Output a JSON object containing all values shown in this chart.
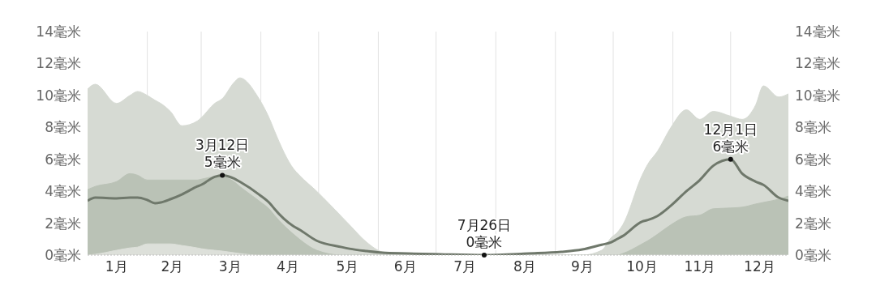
{
  "chart_data": {
    "type": "area",
    "x": [
      "--01-01",
      "--01-05",
      "--01-16",
      "--01-23",
      "--01-27",
      "--02-01",
      "--02-05",
      "--02-08",
      "--02-13",
      "--02-19",
      "--02-27",
      "--03-01",
      "--03-08",
      "--03-12",
      "--03-18",
      "--03-21",
      "--03-31",
      "--04-06",
      "--04-08",
      "--04-18",
      "--04-21",
      "--04-30",
      "--05-13",
      "--05-17",
      "--05-26",
      "--06-03",
      "--06-16",
      "--07-03",
      "--07-26",
      "--08-18",
      "--09-04",
      "--09-15",
      "--09-25",
      "--09-30",
      "--10-03",
      "--10-06",
      "--10-16",
      "--10-19",
      "--10-24",
      "--10-31",
      "--11-08",
      "--11-15",
      "--11-22",
      "--12-01",
      "--12-07",
      "--12-14",
      "--12-18",
      "--12-26",
      "--12-31"
    ],
    "series": [
      {
        "color": "#d6dad3",
        "values": [
          10.4,
          10.7,
          9.5,
          10.0,
          10.25,
          10.0,
          9.7,
          9.5,
          9.0,
          8.1,
          8.4,
          8.6,
          9.5,
          9.8,
          10.8,
          11.1,
          9.8,
          8.4,
          7.8,
          5.4,
          5.0,
          4.0,
          2.4,
          1.9,
          0.8,
          0.2,
          0,
          0,
          0,
          0,
          0,
          0,
          0.3,
          1.1,
          1.4,
          1.9,
          5.0,
          5.7,
          6.5,
          8.0,
          9.1,
          8.5,
          9.0,
          8.7,
          8.5,
          9.4,
          10.6,
          9.9,
          10.1
        ]
      },
      {
        "color": "#bac2b6",
        "values": [
          4.1,
          4.3,
          4.6,
          5.1,
          5.0,
          4.7,
          4.7,
          4.7,
          4.7,
          4.7,
          4.7,
          4.75,
          4.9,
          4.9,
          4.6,
          4.3,
          3.4,
          2.8,
          2.5,
          1.3,
          1.0,
          0.3,
          0,
          0,
          0,
          0,
          0,
          0,
          0,
          0,
          0,
          0,
          0,
          0,
          0,
          0.1,
          0.7,
          0.9,
          1.3,
          1.9,
          2.4,
          2.5,
          2.9,
          2.95,
          3.0,
          3.2,
          3.3,
          3.5,
          3.7
        ]
      },
      {
        "color": "#dde0da",
        "values": [
          0,
          0.05,
          0.3,
          0.45,
          0.5,
          0.7,
          0.7,
          0.7,
          0.7,
          0.6,
          0.45,
          0.4,
          0.3,
          0.25,
          0.15,
          0.1,
          0,
          0,
          0,
          0,
          0,
          0,
          0,
          0,
          0,
          0,
          0,
          0,
          0,
          0,
          0,
          0,
          0,
          0,
          0,
          0,
          0,
          0,
          0,
          0,
          0,
          0,
          0,
          0,
          0,
          0,
          0,
          0,
          0
        ]
      },
      {
        "type": "line",
        "color": "#6f786b",
        "values": [
          3.4,
          3.6,
          3.55,
          3.6,
          3.6,
          3.45,
          3.25,
          3.3,
          3.5,
          3.8,
          4.3,
          4.4,
          4.9,
          5,
          4.8,
          4.6,
          3.8,
          3.2,
          2.9,
          1.8,
          1.6,
          0.9,
          0.5,
          0.4,
          0.25,
          0.15,
          0.1,
          0.05,
          0,
          0.1,
          0.2,
          0.35,
          0.65,
          0.8,
          1.0,
          1.2,
          2.1,
          2.2,
          2.45,
          3.1,
          4.0,
          4.7,
          5.6,
          6,
          5.1,
          4.6,
          4.4,
          3.6,
          3.4
        ]
      }
    ],
    "xlim": [
      "--01-01",
      "--12-31"
    ],
    "xticks": [
      {
        "value": "--01-16",
        "label": "1月"
      },
      {
        "value": "--02-01",
        "label": null
      },
      {
        "value": "--02-14",
        "label": "2月"
      },
      {
        "value": "--03-01",
        "label": null
      },
      {
        "value": "--03-16",
        "label": "3月"
      },
      {
        "value": "--04-01",
        "label": null
      },
      {
        "value": "--04-15",
        "label": "4月"
      },
      {
        "value": "--05-01",
        "label": null
      },
      {
        "value": "--05-16",
        "label": "5月"
      },
      {
        "value": "--06-01",
        "label": null
      },
      {
        "value": "--06-15",
        "label": "6月"
      },
      {
        "value": "--07-01",
        "label": null
      },
      {
        "value": "--07-16",
        "label": "7月"
      },
      {
        "value": "--08-01",
        "label": null
      },
      {
        "value": "--08-16",
        "label": "8月"
      },
      {
        "value": "--09-01",
        "label": null
      },
      {
        "value": "--09-15",
        "label": "9月"
      },
      {
        "value": "--10-01",
        "label": null
      },
      {
        "value": "--10-16",
        "label": "10月"
      },
      {
        "value": "--11-01",
        "label": null
      },
      {
        "value": "--11-15",
        "label": "11月"
      },
      {
        "value": "--12-01",
        "label": null
      },
      {
        "value": "--12-16",
        "label": "12月"
      }
    ],
    "ylim": [
      0,
      14
    ],
    "yticks": [
      {
        "value": 0,
        "label": "0毫米"
      },
      {
        "value": 2,
        "label": "2毫米"
      },
      {
        "value": 4,
        "label": "4毫米"
      },
      {
        "value": 6,
        "label": "6毫米"
      },
      {
        "value": 8,
        "label": "8毫米"
      },
      {
        "value": 10,
        "label": "10毫米"
      },
      {
        "value": 12,
        "label": "12毫米"
      },
      {
        "value": 14,
        "label": "14毫米"
      }
    ],
    "y2lim": [
      0,
      14
    ],
    "y2ticks": [
      {
        "value": 0,
        "label": "0毫米"
      },
      {
        "value": 2,
        "label": "2毫米"
      },
      {
        "value": 4,
        "label": "4毫米"
      },
      {
        "value": 6,
        "label": "6毫米"
      },
      {
        "value": 8,
        "label": "8毫米"
      },
      {
        "value": 10,
        "label": "10毫米"
      },
      {
        "value": 12,
        "label": "12毫米"
      },
      {
        "value": 14,
        "label": "14毫米"
      }
    ],
    "grid": true,
    "annotations": [
      {
        "text": "3月12日\n5毫米",
        "x": "--03-12",
        "y": 5
      },
      {
        "text": "7月26日\n0毫米",
        "x": "--07-26",
        "y": 0
      },
      {
        "text": "12月1日\n6毫米",
        "x": "--12-01",
        "y": 6
      }
    ]
  }
}
